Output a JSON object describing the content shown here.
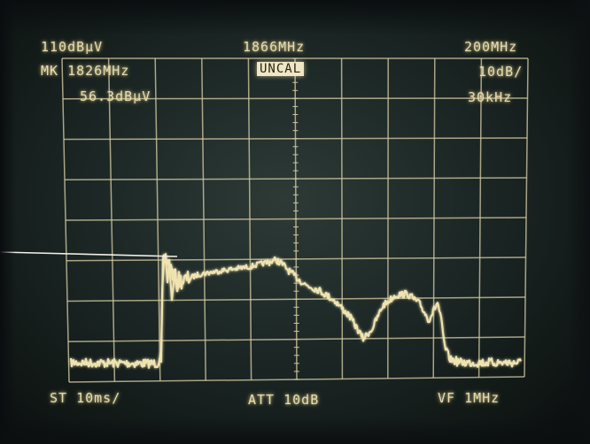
{
  "readout": {
    "ref_level": "110dBµV",
    "center_freq": "1866MHz",
    "span": "200MHz",
    "marker_freq": "MK 1826MHz",
    "uncal": "UNCAL",
    "scale": "10dB/",
    "marker_level": "56.3dBµV",
    "rbw": "30kHz",
    "sweep_time": "ST 10ms/",
    "attenuation": "ATT 10dB",
    "video_filter": "VF 1MHz"
  },
  "colors": {
    "trace": "#efe3b0",
    "graticule": "#cfc6a0",
    "pointer_line": "#f2efe8"
  },
  "graticule": {
    "columns": 10,
    "rows": 8
  }
}
